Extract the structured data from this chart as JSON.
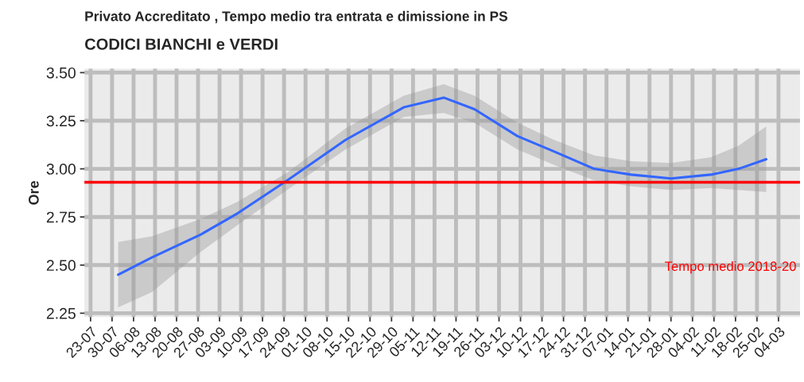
{
  "chart_data": {
    "type": "line",
    "title": "Privato Accreditato , Tempo medio tra entrata e dimissione in PS",
    "subtitle": "CODICI BIANCHI e VERDI",
    "ylabel": "Ore",
    "x": [
      "2018-08-01",
      "2018-08-12",
      "2018-08-28",
      "2018-09-09",
      "2018-09-25",
      "2018-10-14",
      "2018-11-02",
      "2018-11-15",
      "2018-11-25",
      "2018-12-09",
      "2018-12-21",
      "2019-01-03",
      "2019-01-15",
      "2019-01-28",
      "2019-02-10",
      "2019-02-19",
      "2019-02-28"
    ],
    "series": [
      {
        "color": "#3366ff",
        "values": [
          2.45,
          2.54,
          2.66,
          2.77,
          2.94,
          3.15,
          3.32,
          3.37,
          3.31,
          3.17,
          3.09,
          3.0,
          2.97,
          2.95,
          2.97,
          3.0,
          3.05
        ],
        "lower": [
          2.28,
          2.36,
          2.57,
          2.71,
          2.89,
          3.1,
          3.27,
          3.29,
          3.24,
          3.1,
          3.02,
          2.94,
          2.91,
          2.89,
          2.9,
          2.89,
          2.88
        ],
        "upper": [
          2.62,
          2.65,
          2.74,
          2.83,
          2.98,
          3.21,
          3.38,
          3.44,
          3.38,
          3.24,
          3.15,
          3.07,
          3.04,
          3.03,
          3.06,
          3.12,
          3.22
        ]
      }
    ],
    "ref_lines": [
      {
        "axis": "y",
        "value": 2.93,
        "label": "Tempo medio 2018-20",
        "color": "#ff0000"
      }
    ],
    "xlim": [
      "2018-07-21",
      "2019-03-11"
    ],
    "xticks": [
      {
        "value": "2018-07-23",
        "label": "23-07"
      },
      {
        "value": "2018-07-30",
        "label": "30-07"
      },
      {
        "value": "2018-08-06",
        "label": "06-08"
      },
      {
        "value": "2018-08-13",
        "label": "13-08"
      },
      {
        "value": "2018-08-20",
        "label": "20-08"
      },
      {
        "value": "2018-08-27",
        "label": "27-08"
      },
      {
        "value": "2018-09-03",
        "label": "03-09"
      },
      {
        "value": "2018-09-10",
        "label": "10-09"
      },
      {
        "value": "2018-09-17",
        "label": "17-09"
      },
      {
        "value": "2018-09-24",
        "label": "24-09"
      },
      {
        "value": "2018-10-01",
        "label": "01-10"
      },
      {
        "value": "2018-10-08",
        "label": "08-10"
      },
      {
        "value": "2018-10-15",
        "label": "15-10"
      },
      {
        "value": "2018-10-22",
        "label": "22-10"
      },
      {
        "value": "2018-10-29",
        "label": "29-10"
      },
      {
        "value": "2018-11-05",
        "label": "05-11"
      },
      {
        "value": "2018-11-12",
        "label": "12-11"
      },
      {
        "value": "2018-11-19",
        "label": "19-11"
      },
      {
        "value": "2018-11-26",
        "label": "26-11"
      },
      {
        "value": "2018-12-03",
        "label": "03-12"
      },
      {
        "value": "2018-12-10",
        "label": "10-12"
      },
      {
        "value": "2018-12-17",
        "label": "17-12"
      },
      {
        "value": "2018-12-24",
        "label": "24-12"
      },
      {
        "value": "2018-12-31",
        "label": "31-12"
      },
      {
        "value": "2019-01-07",
        "label": "07-01"
      },
      {
        "value": "2019-01-14",
        "label": "14-01"
      },
      {
        "value": "2019-01-21",
        "label": "21-01"
      },
      {
        "value": "2019-01-28",
        "label": "28-01"
      },
      {
        "value": "2019-02-04",
        "label": "04-02"
      },
      {
        "value": "2019-02-11",
        "label": "11-02"
      },
      {
        "value": "2019-02-18",
        "label": "18-02"
      },
      {
        "value": "2019-02-25",
        "label": "25-02"
      },
      {
        "value": "2019-03-04",
        "label": "04-03"
      }
    ],
    "ylim": [
      2.23,
      3.52
    ],
    "yticks": [
      {
        "value": 2.25,
        "label": "2.25"
      },
      {
        "value": 2.5,
        "label": "2.50"
      },
      {
        "value": 2.75,
        "label": "2.75"
      },
      {
        "value": 3.0,
        "label": "3.00"
      },
      {
        "value": 3.25,
        "label": "3.25"
      },
      {
        "value": 3.5,
        "label": "3.50"
      }
    ],
    "grid": true,
    "legend": false
  }
}
